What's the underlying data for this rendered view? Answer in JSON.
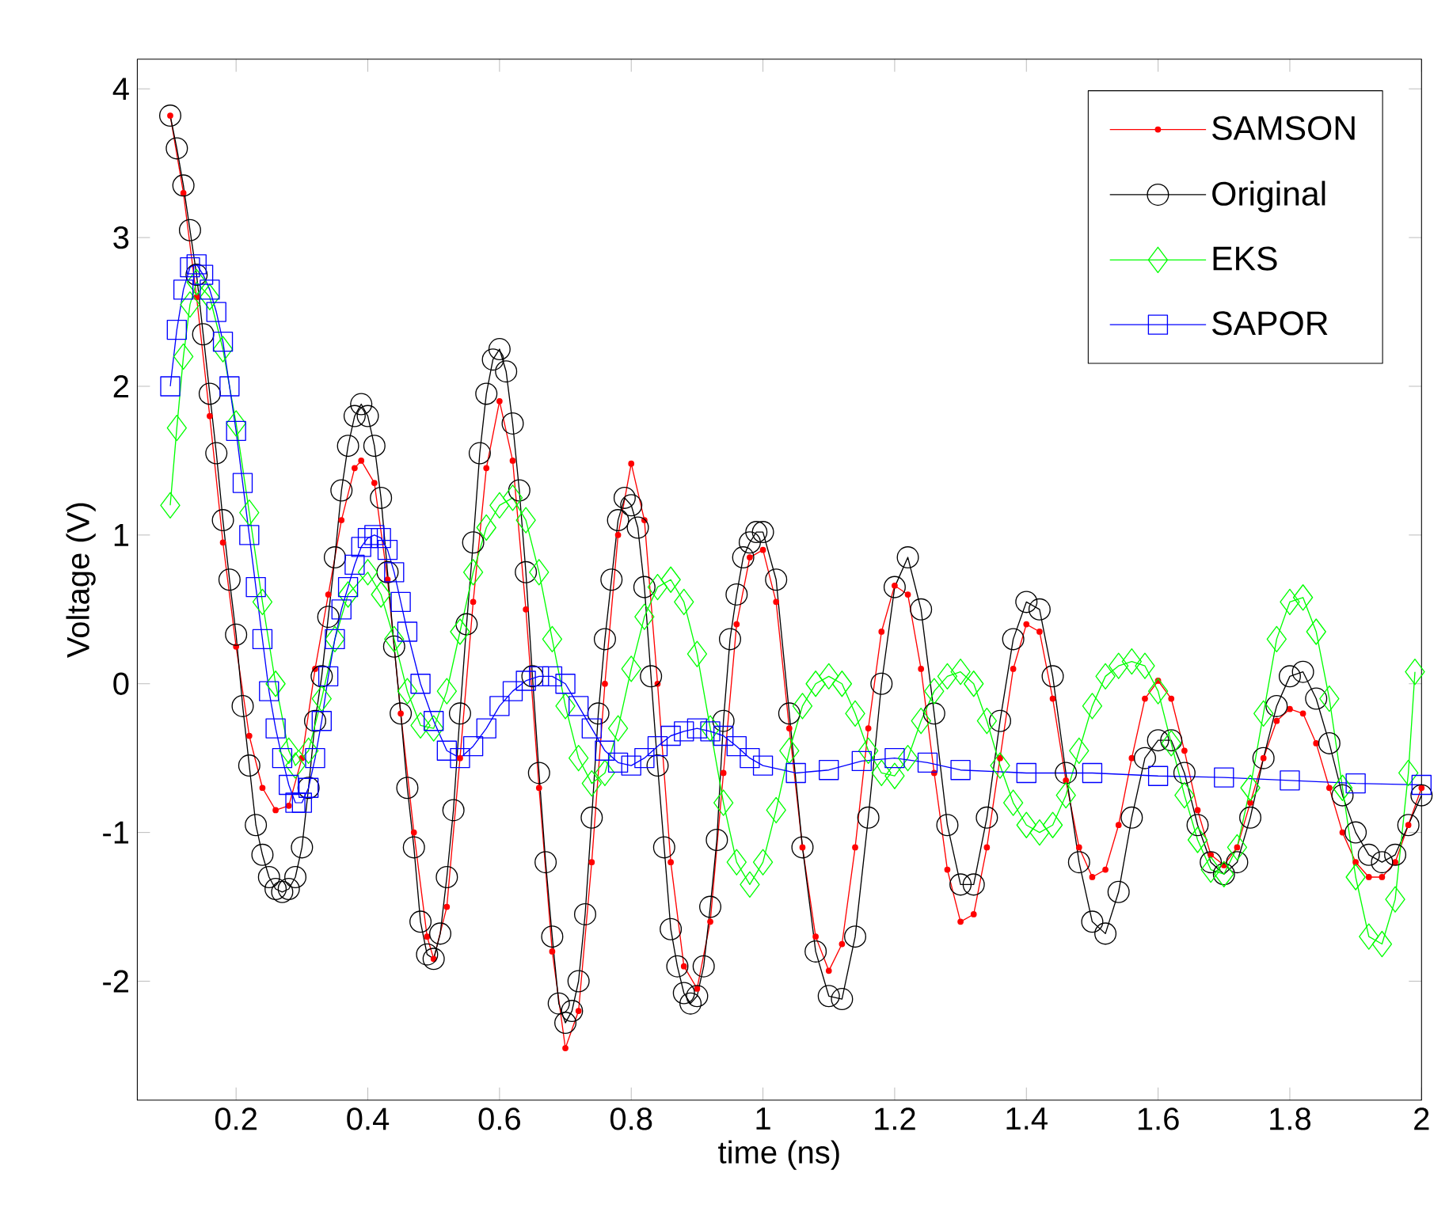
{
  "chart_data": {
    "type": "line",
    "xlabel": "time (ns)",
    "ylabel": "Voltage (V)",
    "xlim": [
      0.05,
      2
    ],
    "ylim": [
      -2.8,
      4.2
    ],
    "xticks": [
      0.2,
      0.4,
      0.6,
      0.8,
      1,
      1.2,
      1.4,
      1.6,
      1.8,
      2
    ],
    "yticks": [
      -2,
      -1,
      0,
      1,
      2,
      3,
      4
    ],
    "legend": "top right",
    "grid": false,
    "series": [
      {
        "name": "SAMSON",
        "color": "#ff0000",
        "marker": "point",
        "x": [
          0.1,
          0.12,
          0.14,
          0.16,
          0.18,
          0.2,
          0.22,
          0.24,
          0.26,
          0.28,
          0.3,
          0.32,
          0.34,
          0.36,
          0.38,
          0.39,
          0.41,
          0.43,
          0.45,
          0.47,
          0.49,
          0.5,
          0.52,
          0.54,
          0.56,
          0.58,
          0.6,
          0.62,
          0.64,
          0.66,
          0.68,
          0.7,
          0.72,
          0.74,
          0.76,
          0.78,
          0.8,
          0.82,
          0.84,
          0.86,
          0.88,
          0.9,
          0.92,
          0.94,
          0.96,
          0.98,
          1.0,
          1.02,
          1.04,
          1.06,
          1.08,
          1.1,
          1.12,
          1.14,
          1.16,
          1.18,
          1.2,
          1.22,
          1.24,
          1.26,
          1.28,
          1.3,
          1.32,
          1.34,
          1.36,
          1.38,
          1.4,
          1.42,
          1.44,
          1.46,
          1.48,
          1.5,
          1.52,
          1.54,
          1.56,
          1.58,
          1.6,
          1.62,
          1.64,
          1.66,
          1.68,
          1.7,
          1.72,
          1.74,
          1.76,
          1.78,
          1.8,
          1.82,
          1.84,
          1.86,
          1.88,
          1.9,
          1.92,
          1.94,
          1.96,
          1.98,
          2.0
        ],
        "values": [
          3.82,
          3.3,
          2.6,
          1.8,
          0.95,
          0.25,
          -0.35,
          -0.7,
          -0.85,
          -0.82,
          -0.5,
          0.1,
          0.6,
          1.1,
          1.45,
          1.5,
          1.35,
          0.7,
          -0.2,
          -1.0,
          -1.7,
          -1.85,
          -1.5,
          -0.5,
          0.55,
          1.45,
          1.9,
          1.5,
          0.5,
          -0.7,
          -1.8,
          -2.45,
          -2.2,
          -1.2,
          0.0,
          1.0,
          1.48,
          1.1,
          0.0,
          -1.2,
          -1.9,
          -2.05,
          -1.6,
          -0.6,
          0.4,
          0.85,
          0.9,
          0.55,
          -0.3,
          -1.1,
          -1.7,
          -1.93,
          -1.75,
          -1.1,
          -0.3,
          0.35,
          0.66,
          0.6,
          0.1,
          -0.6,
          -1.25,
          -1.6,
          -1.55,
          -1.1,
          -0.5,
          0.1,
          0.4,
          0.35,
          -0.1,
          -0.65,
          -1.1,
          -1.3,
          -1.25,
          -0.95,
          -0.5,
          -0.1,
          0.02,
          -0.1,
          -0.45,
          -0.85,
          -1.15,
          -1.22,
          -1.1,
          -0.8,
          -0.5,
          -0.25,
          -0.17,
          -0.2,
          -0.4,
          -0.7,
          -1.0,
          -1.2,
          -1.3,
          -1.3,
          -1.2,
          -0.95,
          -0.7
        ]
      },
      {
        "name": "Original",
        "color": "#000000",
        "marker": "circle",
        "x": [
          0.1,
          0.11,
          0.12,
          0.13,
          0.14,
          0.15,
          0.16,
          0.17,
          0.18,
          0.19,
          0.2,
          0.21,
          0.22,
          0.23,
          0.24,
          0.25,
          0.26,
          0.27,
          0.28,
          0.29,
          0.3,
          0.31,
          0.32,
          0.33,
          0.34,
          0.35,
          0.36,
          0.37,
          0.38,
          0.39,
          0.4,
          0.41,
          0.42,
          0.43,
          0.44,
          0.45,
          0.46,
          0.47,
          0.48,
          0.49,
          0.5,
          0.51,
          0.52,
          0.53,
          0.54,
          0.55,
          0.56,
          0.57,
          0.58,
          0.59,
          0.6,
          0.61,
          0.62,
          0.63,
          0.64,
          0.65,
          0.66,
          0.67,
          0.68,
          0.69,
          0.7,
          0.71,
          0.72,
          0.73,
          0.74,
          0.75,
          0.76,
          0.77,
          0.78,
          0.79,
          0.8,
          0.81,
          0.82,
          0.83,
          0.84,
          0.85,
          0.86,
          0.87,
          0.88,
          0.89,
          0.9,
          0.91,
          0.92,
          0.93,
          0.94,
          0.95,
          0.96,
          0.97,
          0.98,
          0.99,
          1.0,
          1.02,
          1.04,
          1.06,
          1.08,
          1.1,
          1.12,
          1.14,
          1.16,
          1.18,
          1.2,
          1.22,
          1.24,
          1.26,
          1.28,
          1.3,
          1.32,
          1.34,
          1.36,
          1.38,
          1.4,
          1.42,
          1.44,
          1.46,
          1.48,
          1.5,
          1.52,
          1.54,
          1.56,
          1.58,
          1.6,
          1.62,
          1.64,
          1.66,
          1.68,
          1.7,
          1.72,
          1.74,
          1.76,
          1.78,
          1.8,
          1.82,
          1.84,
          1.86,
          1.88,
          1.9,
          1.92,
          1.94,
          1.96,
          1.98,
          2.0
        ],
        "values": [
          3.82,
          3.6,
          3.35,
          3.05,
          2.75,
          2.35,
          1.95,
          1.55,
          1.1,
          0.7,
          0.33,
          -0.15,
          -0.55,
          -0.95,
          -1.15,
          -1.3,
          -1.38,
          -1.4,
          -1.38,
          -1.3,
          -1.1,
          -0.7,
          -0.25,
          0.05,
          0.45,
          0.85,
          1.3,
          1.6,
          1.8,
          1.88,
          1.8,
          1.6,
          1.25,
          0.75,
          0.25,
          -0.2,
          -0.7,
          -1.1,
          -1.6,
          -1.82,
          -1.85,
          -1.68,
          -1.3,
          -0.85,
          -0.2,
          0.4,
          0.95,
          1.55,
          1.95,
          2.18,
          2.25,
          2.1,
          1.75,
          1.3,
          0.75,
          0.05,
          -0.6,
          -1.2,
          -1.7,
          -2.15,
          -2.28,
          -2.2,
          -2.0,
          -1.55,
          -0.9,
          -0.2,
          0.3,
          0.7,
          1.1,
          1.25,
          1.2,
          1.05,
          0.65,
          0.05,
          -0.55,
          -1.1,
          -1.65,
          -1.9,
          -2.08,
          -2.15,
          -2.1,
          -1.9,
          -1.5,
          -1.05,
          -0.25,
          0.3,
          0.6,
          0.85,
          0.95,
          1.02,
          1.02,
          0.7,
          -0.2,
          -1.1,
          -1.8,
          -2.1,
          -2.12,
          -1.7,
          -0.9,
          0.0,
          0.65,
          0.85,
          0.5,
          -0.2,
          -0.95,
          -1.35,
          -1.35,
          -0.9,
          -0.25,
          0.3,
          0.55,
          0.5,
          0.05,
          -0.6,
          -1.2,
          -1.6,
          -1.68,
          -1.4,
          -0.9,
          -0.5,
          -0.38,
          -0.38,
          -0.6,
          -0.95,
          -1.2,
          -1.28,
          -1.2,
          -0.9,
          -0.5,
          -0.15,
          0.05,
          0.08,
          -0.1,
          -0.4,
          -0.75,
          -1.0,
          -1.15,
          -1.2,
          -1.15,
          -0.95,
          -0.75
        ]
      },
      {
        "name": "EKS",
        "color": "#00ff00",
        "marker": "diamond",
        "x": [
          0.1,
          0.11,
          0.12,
          0.13,
          0.14,
          0.16,
          0.18,
          0.2,
          0.22,
          0.24,
          0.26,
          0.28,
          0.29,
          0.31,
          0.33,
          0.35,
          0.37,
          0.4,
          0.42,
          0.44,
          0.46,
          0.48,
          0.5,
          0.52,
          0.54,
          0.56,
          0.58,
          0.6,
          0.62,
          0.64,
          0.66,
          0.68,
          0.7,
          0.72,
          0.74,
          0.76,
          0.78,
          0.8,
          0.82,
          0.84,
          0.86,
          0.88,
          0.9,
          0.92,
          0.94,
          0.96,
          0.98,
          1.0,
          1.02,
          1.04,
          1.06,
          1.08,
          1.1,
          1.12,
          1.14,
          1.16,
          1.18,
          1.2,
          1.22,
          1.24,
          1.26,
          1.28,
          1.3,
          1.32,
          1.34,
          1.36,
          1.38,
          1.4,
          1.42,
          1.44,
          1.46,
          1.48,
          1.5,
          1.52,
          1.54,
          1.56,
          1.58,
          1.6,
          1.62,
          1.64,
          1.66,
          1.68,
          1.7,
          1.72,
          1.74,
          1.76,
          1.78,
          1.8,
          1.82,
          1.84,
          1.86,
          1.88,
          1.9,
          1.92,
          1.94,
          1.96,
          1.98,
          1.99
        ],
        "values": [
          1.2,
          1.72,
          2.2,
          2.55,
          2.7,
          2.6,
          2.25,
          1.75,
          1.15,
          0.55,
          0.0,
          -0.45,
          -0.55,
          -0.45,
          -0.1,
          0.3,
          0.6,
          0.75,
          0.6,
          0.3,
          -0.05,
          -0.28,
          -0.3,
          -0.05,
          0.35,
          0.75,
          1.05,
          1.2,
          1.25,
          1.1,
          0.75,
          0.3,
          -0.15,
          -0.5,
          -0.67,
          -0.6,
          -0.3,
          0.1,
          0.45,
          0.65,
          0.7,
          0.55,
          0.2,
          -0.3,
          -0.8,
          -1.2,
          -1.35,
          -1.2,
          -0.85,
          -0.45,
          -0.15,
          0.0,
          0.05,
          0.0,
          -0.2,
          -0.45,
          -0.6,
          -0.62,
          -0.5,
          -0.25,
          -0.05,
          0.05,
          0.08,
          0.0,
          -0.25,
          -0.55,
          -0.8,
          -0.95,
          -1.0,
          -0.95,
          -0.75,
          -0.45,
          -0.15,
          0.05,
          0.12,
          0.15,
          0.12,
          -0.05,
          -0.4,
          -0.75,
          -1.05,
          -1.25,
          -1.28,
          -1.1,
          -0.7,
          -0.2,
          0.3,
          0.55,
          0.58,
          0.35,
          -0.1,
          -0.7,
          -1.3,
          -1.7,
          -1.75,
          -1.45,
          -0.6,
          0.08
        ]
      },
      {
        "name": "SAPOR",
        "color": "#0000ff",
        "marker": "square",
        "x": [
          0.1,
          0.11,
          0.12,
          0.13,
          0.14,
          0.15,
          0.16,
          0.17,
          0.18,
          0.19,
          0.2,
          0.21,
          0.22,
          0.23,
          0.24,
          0.25,
          0.26,
          0.27,
          0.28,
          0.29,
          0.3,
          0.31,
          0.32,
          0.33,
          0.34,
          0.35,
          0.36,
          0.37,
          0.38,
          0.39,
          0.4,
          0.41,
          0.42,
          0.43,
          0.44,
          0.45,
          0.46,
          0.48,
          0.5,
          0.52,
          0.54,
          0.56,
          0.58,
          0.6,
          0.62,
          0.64,
          0.66,
          0.68,
          0.7,
          0.72,
          0.74,
          0.76,
          0.78,
          0.8,
          0.82,
          0.84,
          0.86,
          0.88,
          0.9,
          0.92,
          0.94,
          0.96,
          0.98,
          1.0,
          1.05,
          1.1,
          1.15,
          1.2,
          1.25,
          1.3,
          1.4,
          1.5,
          1.6,
          1.7,
          1.8,
          1.9,
          2.0
        ],
        "values": [
          2.0,
          2.38,
          2.65,
          2.8,
          2.82,
          2.75,
          2.65,
          2.5,
          2.3,
          2.0,
          1.7,
          1.35,
          1.0,
          0.65,
          0.3,
          -0.05,
          -0.3,
          -0.5,
          -0.68,
          -0.8,
          -0.8,
          -0.7,
          -0.5,
          -0.25,
          0.05,
          0.3,
          0.5,
          0.65,
          0.8,
          0.92,
          0.98,
          1.0,
          0.98,
          0.9,
          0.75,
          0.55,
          0.35,
          0.0,
          -0.25,
          -0.45,
          -0.5,
          -0.42,
          -0.3,
          -0.15,
          -0.05,
          0.02,
          0.05,
          0.05,
          0.0,
          -0.15,
          -0.3,
          -0.45,
          -0.53,
          -0.55,
          -0.5,
          -0.42,
          -0.35,
          -0.32,
          -0.3,
          -0.32,
          -0.35,
          -0.42,
          -0.5,
          -0.55,
          -0.6,
          -0.58,
          -0.52,
          -0.5,
          -0.53,
          -0.58,
          -0.6,
          -0.6,
          -0.62,
          -0.63,
          -0.65,
          -0.67,
          -0.68
        ]
      }
    ]
  }
}
